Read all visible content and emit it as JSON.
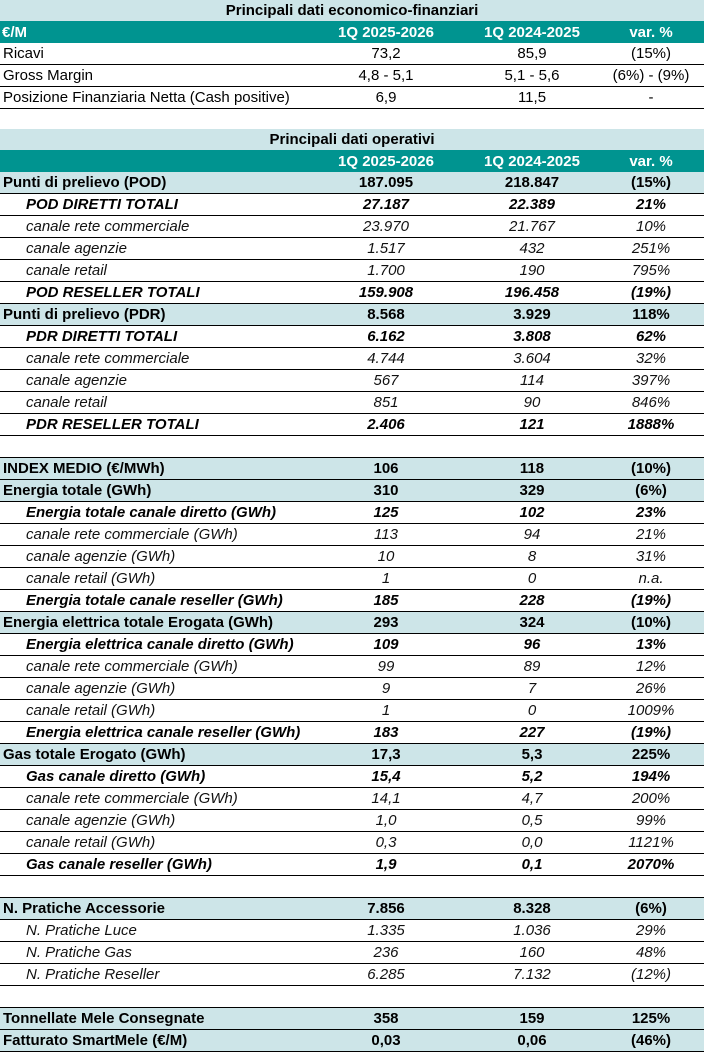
{
  "financial": {
    "title": "Principali dati economico-finanziari",
    "headers": [
      "€/M",
      "1Q 2025-2026",
      "1Q 2024-2025",
      "var. %"
    ],
    "rows": [
      {
        "label": "Ricavi",
        "v1": "73,2",
        "v2": "85,9",
        "var": "(15%)"
      },
      {
        "label": "Gross Margin",
        "v1": "4,8 - 5,1",
        "v2": "5,1 - 5,6",
        "var": "(6%) - (9%)"
      },
      {
        "label": "Posizione Finanziaria Netta (Cash positive)",
        "v1": "6,9",
        "v2": "11,5",
        "var": "-"
      }
    ]
  },
  "operational": {
    "title": "Principali dati operativi",
    "headers": [
      "",
      "1Q 2025-2026",
      "1Q 2024-2025",
      "var. %"
    ],
    "rows": [
      {
        "label": "Punti di prelievo (POD)",
        "v1": "187.095",
        "v2": "218.847",
        "var": "(15%)",
        "style": "main"
      },
      {
        "label": "POD DIRETTI TOTALI",
        "v1": "27.187",
        "v2": "22.389",
        "var": "21%",
        "style": "bi"
      },
      {
        "label": "canale rete commerciale",
        "v1": "23.970",
        "v2": "21.767",
        "var": "10%",
        "style": "it"
      },
      {
        "label": "canale agenzie",
        "v1": "1.517",
        "v2": "432",
        "var": "251%",
        "style": "it"
      },
      {
        "label": "canale retail",
        "v1": "1.700",
        "v2": "190",
        "var": "795%",
        "style": "it"
      },
      {
        "label": "POD RESELLER TOTALI",
        "v1": "159.908",
        "v2": "196.458",
        "var": "(19%)",
        "style": "bi"
      },
      {
        "label": "Punti di prelievo (PDR)",
        "v1": "8.568",
        "v2": "3.929",
        "var": "118%",
        "style": "main"
      },
      {
        "label": "PDR DIRETTI TOTALI",
        "v1": "6.162",
        "v2": "3.808",
        "var": "62%",
        "style": "bi"
      },
      {
        "label": "canale rete commerciale",
        "v1": "4.744",
        "v2": "3.604",
        "var": "32%",
        "style": "it"
      },
      {
        "label": "canale agenzie",
        "v1": "567",
        "v2": "114",
        "var": "397%",
        "style": "it"
      },
      {
        "label": "canale retail",
        "v1": "851",
        "v2": "90",
        "var": "846%",
        "style": "it"
      },
      {
        "label": "PDR RESELLER TOTALI",
        "v1": "2.406",
        "v2": "121",
        "var": "1888%",
        "style": "bi"
      }
    ]
  },
  "energy": {
    "rows": [
      {
        "label": "INDEX MEDIO (€/MWh)",
        "v1": "106",
        "v2": "118",
        "var": "(10%)",
        "style": "main"
      },
      {
        "label": "Energia totale (GWh)",
        "v1": "310",
        "v2": "329",
        "var": "(6%)",
        "style": "main"
      },
      {
        "label": "Energia totale canale diretto (GWh)",
        "v1": "125",
        "v2": "102",
        "var": "23%",
        "style": "bi"
      },
      {
        "label": "canale rete commerciale (GWh)",
        "v1": "113",
        "v2": "94",
        "var": "21%",
        "style": "it"
      },
      {
        "label": "canale agenzie (GWh)",
        "v1": "10",
        "v2": "8",
        "var": "31%",
        "style": "it"
      },
      {
        "label": "canale retail (GWh)",
        "v1": "1",
        "v2": "0",
        "var": "n.a.",
        "style": "it"
      },
      {
        "label": "Energia totale canale reseller (GWh)",
        "v1": "185",
        "v2": "228",
        "var": "(19%)",
        "style": "bi"
      },
      {
        "label": "Energia elettrica totale Erogata (GWh)",
        "v1": "293",
        "v2": "324",
        "var": "(10%)",
        "style": "main"
      },
      {
        "label": "Energia elettrica canale diretto (GWh)",
        "v1": "109",
        "v2": "96",
        "var": "13%",
        "style": "bi"
      },
      {
        "label": "canale rete commerciale (GWh)",
        "v1": "99",
        "v2": "89",
        "var": "12%",
        "style": "it"
      },
      {
        "label": "canale agenzie (GWh)",
        "v1": "9",
        "v2": "7",
        "var": "26%",
        "style": "it"
      },
      {
        "label": "canale retail (GWh)",
        "v1": "1",
        "v2": "0",
        "var": "1009%",
        "style": "it"
      },
      {
        "label": "Energia elettrica canale reseller (GWh)",
        "v1": "183",
        "v2": "227",
        "var": "(19%)",
        "style": "bi"
      },
      {
        "label": "Gas totale Erogato (GWh)",
        "v1": "17,3",
        "v2": "5,3",
        "var": "225%",
        "style": "main"
      },
      {
        "label": "Gas canale diretto (GWh)",
        "v1": "15,4",
        "v2": "5,2",
        "var": "194%",
        "style": "bi"
      },
      {
        "label": "canale rete commerciale (GWh)",
        "v1": "14,1",
        "v2": "4,7",
        "var": "200%",
        "style": "it"
      },
      {
        "label": "canale agenzie (GWh)",
        "v1": "1,0",
        "v2": "0,5",
        "var": "99%",
        "style": "it"
      },
      {
        "label": "canale retail (GWh)",
        "v1": "0,3",
        "v2": "0,0",
        "var": "1121%",
        "style": "it"
      },
      {
        "label": "Gas canale reseller (GWh)",
        "v1": "1,9",
        "v2": "0,1",
        "var": "2070%",
        "style": "bi"
      }
    ]
  },
  "practices": {
    "rows": [
      {
        "label": "N. Pratiche Accessorie",
        "v1": "7.856",
        "v2": "8.328",
        "var": "(6%)",
        "style": "main"
      },
      {
        "label": "N. Pratiche Luce",
        "v1": "1.335",
        "v2": "1.036",
        "var": "29%",
        "style": "it"
      },
      {
        "label": "N. Pratiche Gas",
        "v1": "236",
        "v2": "160",
        "var": "48%",
        "style": "it"
      },
      {
        "label": "N. Pratiche Reseller",
        "v1": "6.285",
        "v2": "7.132",
        "var": "(12%)",
        "style": "it"
      }
    ]
  },
  "smartmele": {
    "rows": [
      {
        "label": "Tonnellate Mele Consegnate",
        "v1": "358",
        "v2": "159",
        "var": "125%",
        "style": "main"
      },
      {
        "label": "Fatturato SmartMele (€/M)",
        "v1": "0,03",
        "v2": "0,06",
        "var": "(46%)",
        "style": "main"
      }
    ]
  },
  "colors": {
    "teal": "#009490",
    "light_blue": "#cde5e8"
  }
}
